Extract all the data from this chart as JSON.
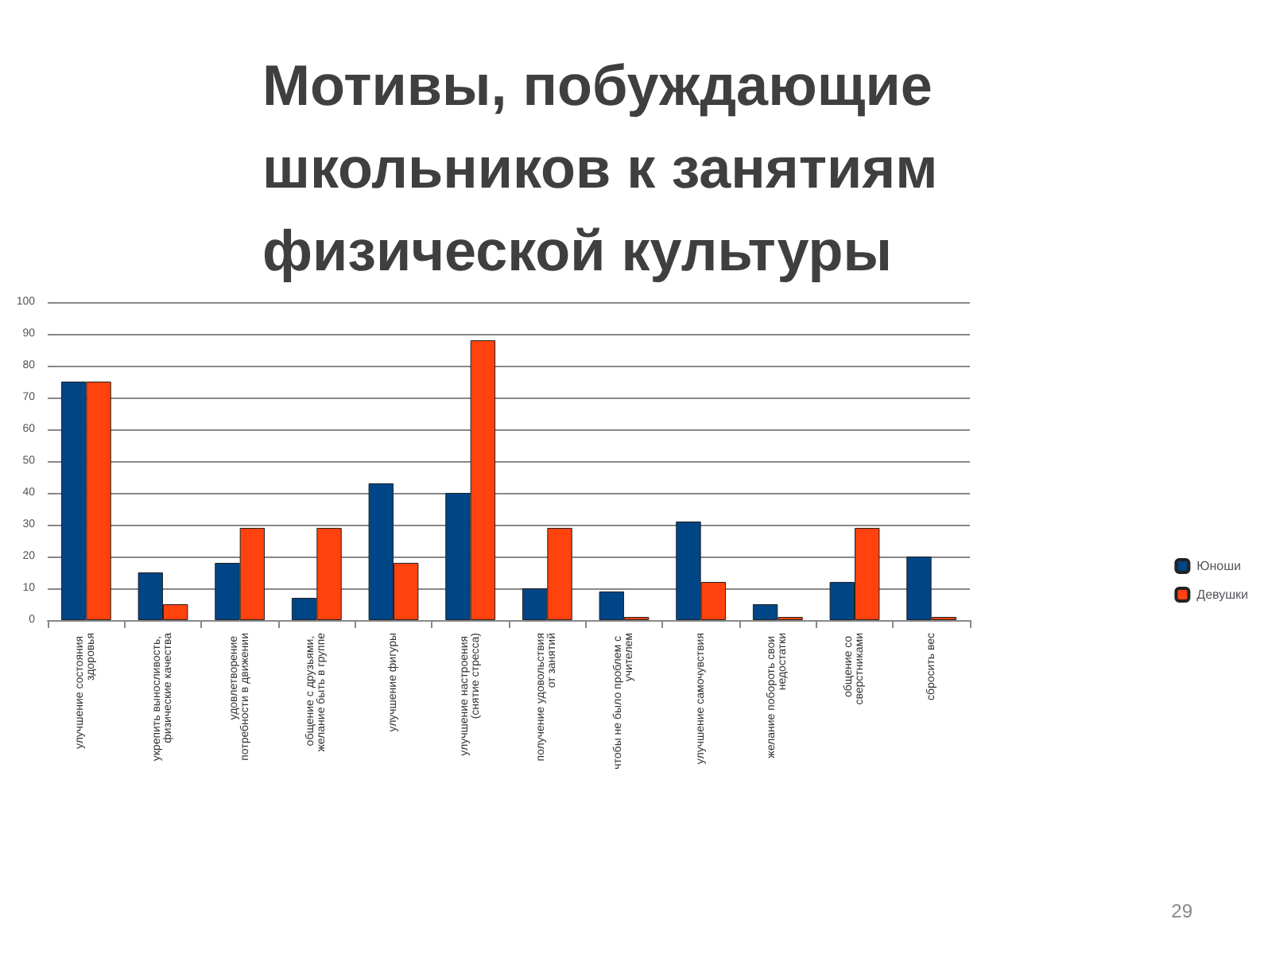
{
  "chart_data": {
    "type": "bar",
    "title": "Мотивы, побуждающие школьников к занятиям физической культуры",
    "categories": [
      "улучшение состояния здоровья",
      "укрепить выносливость, физические качества",
      "удовлетворение потребности в движении",
      "общение с друзьями, желание быть в группе",
      "улучшение фигуры",
      "улучшение настроения (снятие стресса)",
      "получение удовольствия от занятий",
      "чтобы не было проблем с учителем",
      "улучшение самочувствия",
      "желание побороть свои недостатки",
      "общение со сверстниками",
      "сбросить вес"
    ],
    "series": [
      {
        "name": "Юноши",
        "color": "#004586",
        "values": [
          75,
          15,
          18,
          7,
          43,
          40,
          10,
          9,
          31,
          5,
          12,
          20
        ]
      },
      {
        "name": "Девушки",
        "color": "#ff420e",
        "values": [
          75,
          5,
          29,
          29,
          18,
          88,
          29,
          1,
          12,
          1,
          29,
          1
        ]
      }
    ],
    "ylim": [
      0,
      100
    ],
    "yticks": [
      0,
      10,
      20,
      30,
      40,
      50,
      60,
      70,
      80,
      90,
      100
    ],
    "grid": "y",
    "legend": "right",
    "annotations": [
      "29"
    ]
  }
}
